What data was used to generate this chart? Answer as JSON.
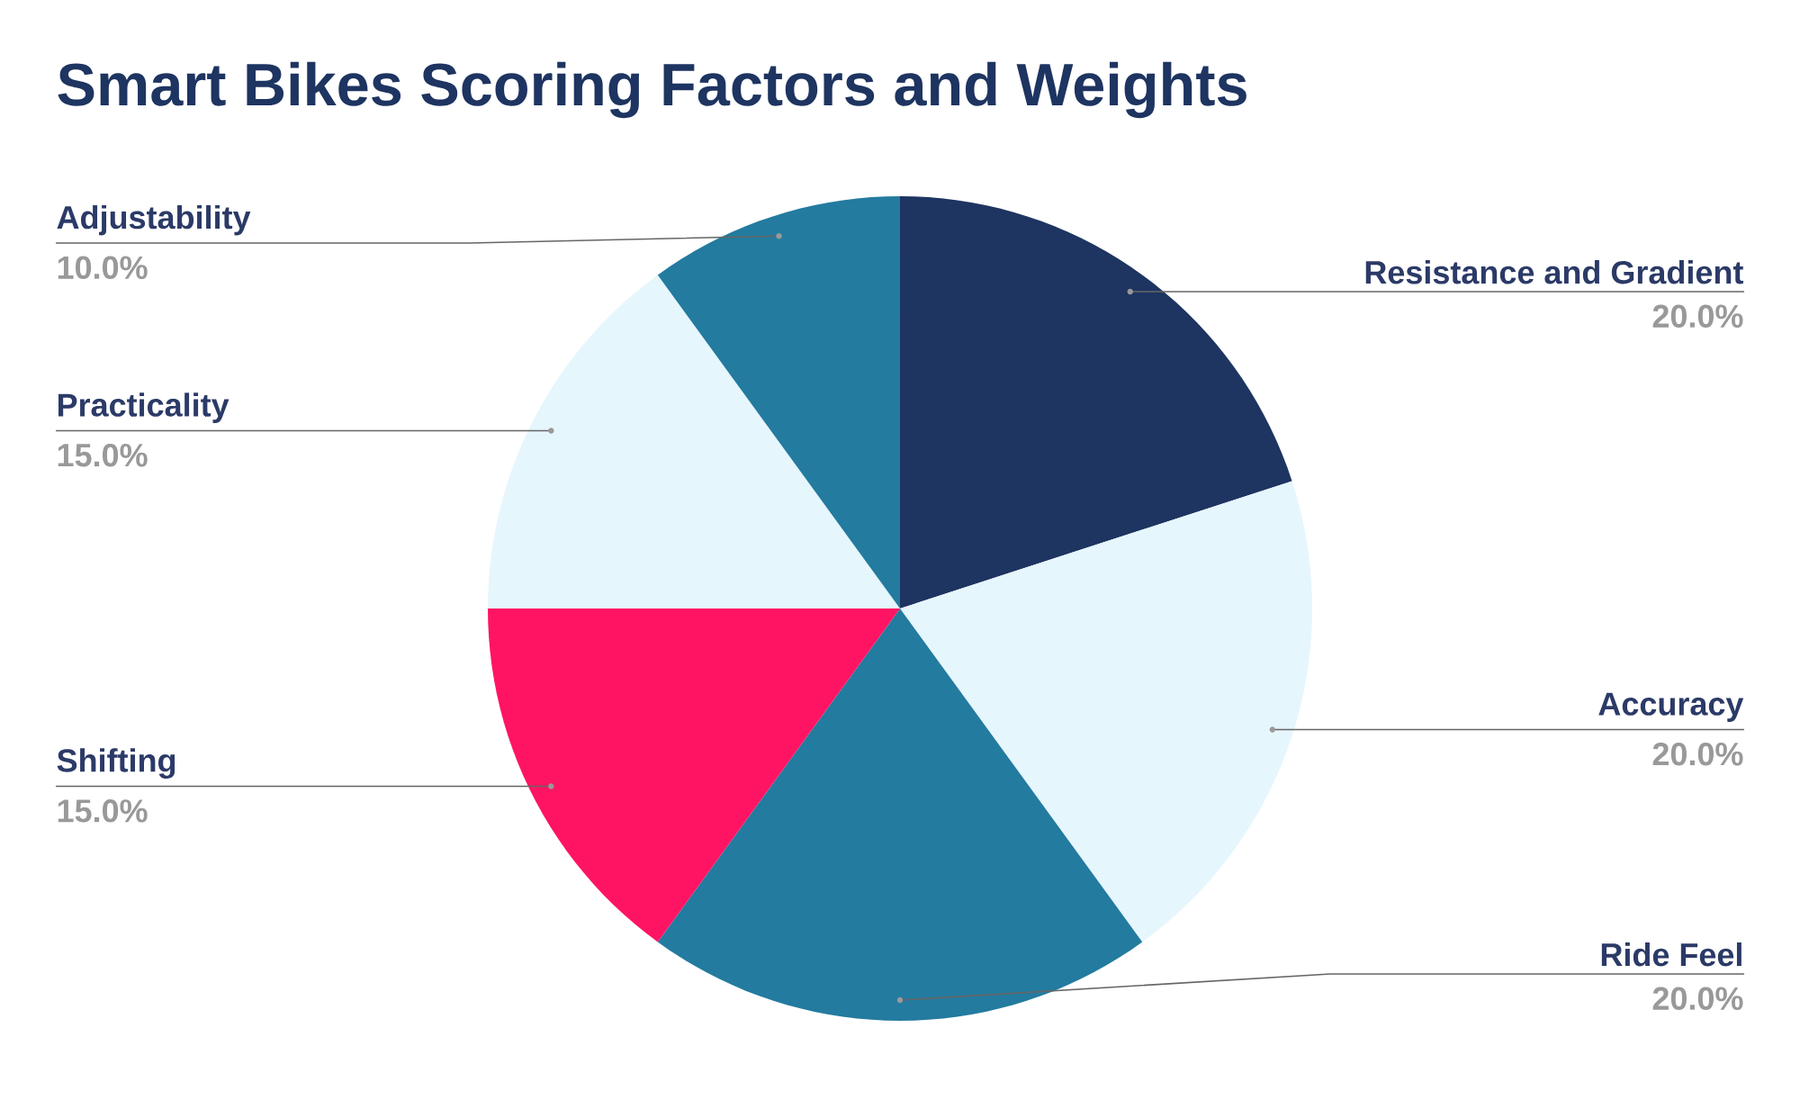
{
  "chart_data": {
    "type": "pie",
    "title": "Smart Bikes Scoring Factors and Weights",
    "categories": [
      "Resistance and Gradient",
      "Accuracy",
      "Ride Feel",
      "Shifting",
      "Practicality",
      "Adjustability"
    ],
    "values": [
      20,
      20,
      20,
      15,
      15,
      10
    ],
    "colors": [
      "#1e3461",
      "#e6f6fd",
      "#237b9f",
      "#ff1464",
      "#e6f6fd",
      "#237b9f"
    ],
    "value_labels": [
      "20.0%",
      "20.0%",
      "20.0%",
      "15.0%",
      "15.0%",
      "10.0%"
    ]
  }
}
